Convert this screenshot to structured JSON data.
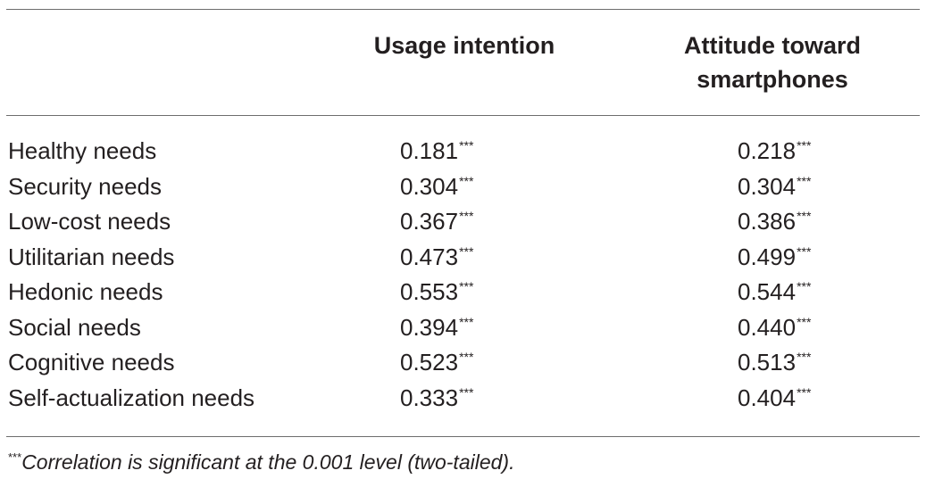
{
  "table": {
    "headers": {
      "col1": "Usage intention",
      "col2_line1": "Attitude toward",
      "col2_line2": "smartphones"
    },
    "rows": [
      {
        "label": "Healthy needs",
        "usage": "0.181",
        "usage_sig": "***",
        "attitude": "0.218",
        "attitude_sig": "***"
      },
      {
        "label": "Security needs",
        "usage": "0.304",
        "usage_sig": "***",
        "attitude": "0.304",
        "attitude_sig": "***"
      },
      {
        "label": "Low-cost needs",
        "usage": "0.367",
        "usage_sig": "***",
        "attitude": "0.386",
        "attitude_sig": "***"
      },
      {
        "label": "Utilitarian needs",
        "usage": "0.473",
        "usage_sig": "***",
        "attitude": "0.499",
        "attitude_sig": "***"
      },
      {
        "label": "Hedonic needs",
        "usage": "0.553",
        "usage_sig": "***",
        "attitude": "0.544",
        "attitude_sig": "***"
      },
      {
        "label": "Social needs",
        "usage": "0.394",
        "usage_sig": "***",
        "attitude": "0.440",
        "attitude_sig": "***"
      },
      {
        "label": "Cognitive needs",
        "usage": "0.523",
        "usage_sig": "***",
        "attitude": "0.513",
        "attitude_sig": "***"
      },
      {
        "label": "Self-actualization needs",
        "usage": "0.333",
        "usage_sig": "***",
        "attitude": "0.404",
        "attitude_sig": "***"
      }
    ]
  },
  "footnote": {
    "mark": "***",
    "text": "Correlation is significant at the 0.001 level (two-tailed)."
  }
}
